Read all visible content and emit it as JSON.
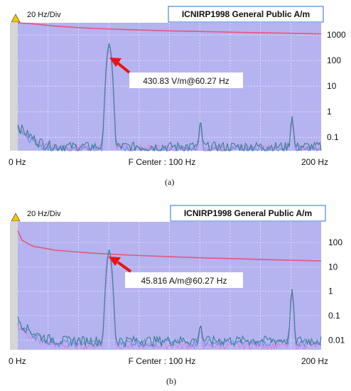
{
  "chart_data": [
    {
      "type": "line",
      "caption": "(a)",
      "div_label": "20 Hz/Div",
      "legend": "ICNIRP1998 General Public A/m",
      "x_labels": {
        "left": "0 Hz",
        "center": "F Center : 100 Hz",
        "right": "200 Hz"
      },
      "xlim": [
        0,
        200
      ],
      "yscale": "log",
      "ylim": [
        0.03,
        3000
      ],
      "yticks": [
        1000,
        100,
        10,
        1,
        0.1
      ],
      "ytick_labels": [
        "1000",
        "100",
        "10",
        "1",
        "0.1"
      ],
      "grid": true,
      "limit_curve": {
        "x": [
          0,
          10,
          25,
          50,
          75,
          100,
          125,
          150,
          175,
          200
        ],
        "y": [
          3300,
          2700,
          2200,
          1800,
          1600,
          1450,
          1350,
          1250,
          1180,
          1100
        ]
      },
      "peaks": [
        {
          "x": 60.27,
          "y": 430.83
        },
        {
          "x": 120.5,
          "y": 0.35
        },
        {
          "x": 180.8,
          "y": 0.6
        }
      ],
      "floor_blue": 0.045,
      "floor_pink": 0.04,
      "annotation": {
        "text": "430.83 V/m@60.27 Hz",
        "x": 60.27,
        "y": 430.83
      }
    },
    {
      "type": "line",
      "caption": "(b)",
      "div_label": "20 Hz/Div",
      "legend": "ICNIRP1998 General Public A/m",
      "x_labels": {
        "left": "0 Hz",
        "center": "F Center : 100 Hz",
        "right": "200 Hz"
      },
      "xlim": [
        0,
        200
      ],
      "yscale": "log",
      "ylim": [
        0.004,
        700
      ],
      "yticks": [
        100,
        10,
        1,
        0.1,
        0.01
      ],
      "ytick_labels": [
        "100",
        "10",
        "1",
        "0.1",
        "0.01"
      ],
      "grid": true,
      "limit_curve": {
        "x": [
          0,
          3,
          10,
          25,
          50,
          75,
          100,
          125,
          150,
          175,
          200
        ],
        "y": [
          300,
          120,
          70,
          48,
          36,
          30,
          26,
          23,
          21,
          19,
          17.5
        ]
      },
      "peaks": [
        {
          "x": 60.27,
          "y": 45.816
        },
        {
          "x": 120.5,
          "y": 0.035
        },
        {
          "x": 180.8,
          "y": 1.1
        }
      ],
      "floor_blue": 0.01,
      "floor_pink": 0.006,
      "annotation": {
        "text": "45.816 A/m@60.27 Hz",
        "x": 60.27,
        "y": 45.816
      }
    }
  ],
  "colors": {
    "plot_bg": "#b5b3f0",
    "grid": "#e8e6ff",
    "limit": "#e8557a",
    "trace_teal": "#3d7f90",
    "trace_blue": "#5a8fe0",
    "trace_pink": "#d77fd8",
    "arrow": "#ee1111",
    "legend_border": "#2a6fd6",
    "marker": "#f4c400"
  }
}
